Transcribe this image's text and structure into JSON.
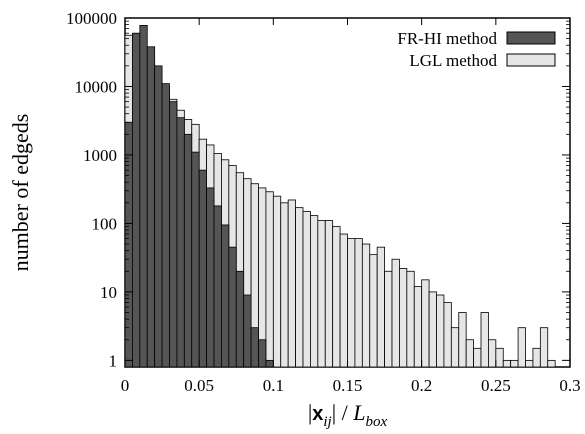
{
  "chart_data": {
    "type": "bar",
    "subtype": "histogram-overlay",
    "yscale": "log",
    "xlim": [
      0,
      0.3
    ],
    "ylim": [
      0.8,
      100000
    ],
    "bin_width": 0.005,
    "grid": false,
    "legend_position": "top-right",
    "ylabel": "number of edgeds",
    "xlabel_parts": {
      "bars": "|",
      "vec": "x",
      "sub": "ij",
      "mid": "| / ",
      "L": "L",
      "Lsub": "box"
    },
    "xticks": [
      "0",
      "0.05",
      "0.1",
      "0.15",
      "0.2",
      "0.25",
      "0.3"
    ],
    "yticks": [
      "1",
      "10",
      "100",
      "1000",
      "10000",
      "100000"
    ],
    "series": [
      {
        "name": "FR-HI  method",
        "color": "#555555",
        "x": [
          0.0,
          0.005,
          0.01,
          0.015,
          0.02,
          0.025,
          0.03,
          0.035,
          0.04,
          0.045,
          0.05,
          0.055,
          0.06,
          0.065,
          0.07,
          0.075,
          0.08,
          0.085,
          0.09,
          0.095
        ],
        "values": [
          3000,
          60000,
          78000,
          38000,
          20000,
          11000,
          6000,
          3500,
          2000,
          1100,
          600,
          330,
          180,
          95,
          45,
          20,
          9,
          3,
          2,
          1
        ]
      },
      {
        "name": "LGL method",
        "color": "#e6e6e6",
        "x": [
          0.0,
          0.005,
          0.01,
          0.015,
          0.02,
          0.025,
          0.03,
          0.035,
          0.04,
          0.045,
          0.05,
          0.055,
          0.06,
          0.065,
          0.07,
          0.075,
          0.08,
          0.085,
          0.09,
          0.095,
          0.1,
          0.105,
          0.11,
          0.115,
          0.12,
          0.125,
          0.13,
          0.135,
          0.14,
          0.145,
          0.15,
          0.155,
          0.16,
          0.165,
          0.17,
          0.175,
          0.18,
          0.185,
          0.19,
          0.195,
          0.2,
          0.205,
          0.21,
          0.215,
          0.22,
          0.225,
          0.23,
          0.235,
          0.24,
          0.245,
          0.25,
          0.255,
          0.26,
          0.265,
          0.27,
          0.275,
          0.28,
          0.285
        ],
        "values": [
          56000,
          58000,
          33000,
          22000,
          15000,
          9500,
          6500,
          4500,
          3300,
          2800,
          1700,
          1400,
          1050,
          850,
          700,
          550,
          450,
          380,
          330,
          290,
          250,
          200,
          220,
          170,
          150,
          130,
          110,
          110,
          90,
          70,
          60,
          60,
          50,
          35,
          45,
          20,
          30,
          22,
          20,
          12,
          15,
          10,
          9,
          7,
          3,
          5,
          2,
          1.5,
          5,
          2,
          1.5,
          1,
          1,
          3,
          1,
          1.5,
          3,
          1
        ]
      }
    ]
  }
}
